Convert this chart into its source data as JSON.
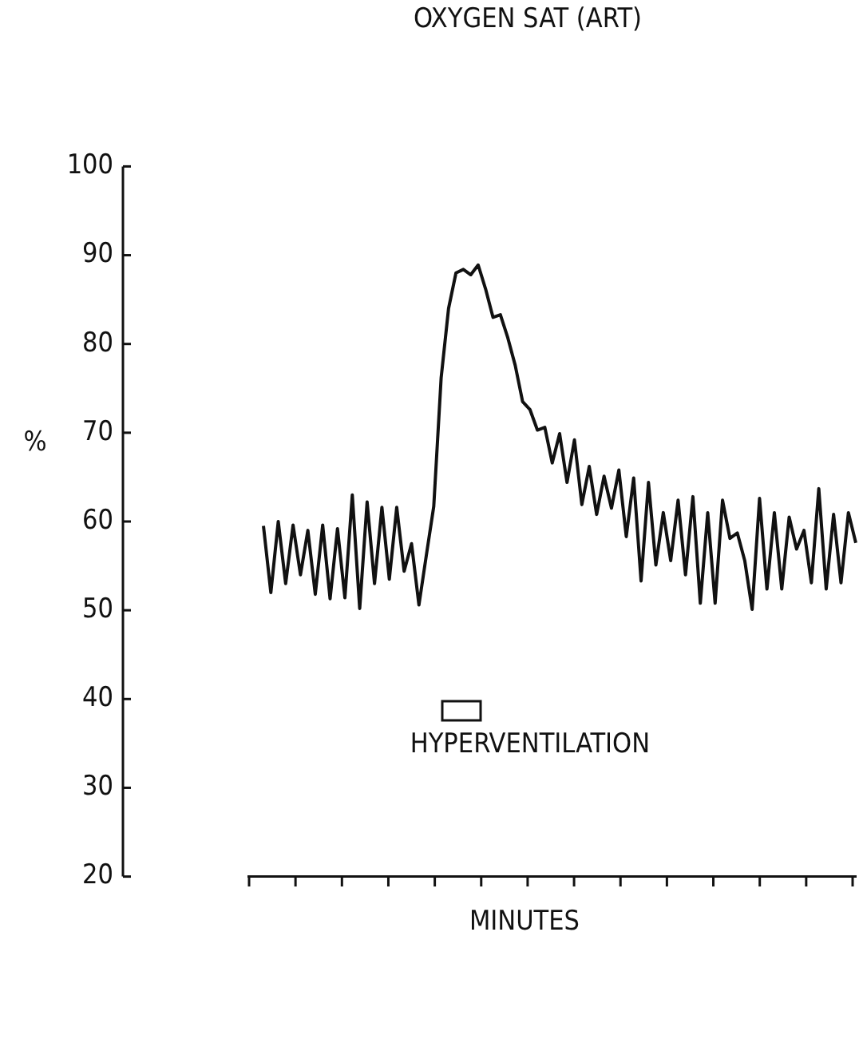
{
  "chart_data": {
    "type": "line",
    "title": "OXYGEN SAT (ART)",
    "xlabel": "MINUTES",
    "ylabel": "%",
    "categories": [
      null,
      null,
      null,
      null,
      null,
      null,
      null,
      null,
      null,
      null,
      null,
      null,
      null,
      null,
      null,
      null,
      null,
      null,
      null,
      null,
      null,
      null,
      null,
      null,
      null,
      null,
      null,
      null,
      null,
      null,
      null,
      null,
      null,
      null,
      null,
      null,
      null,
      null,
      null,
      null,
      null,
      null,
      null,
      null,
      null,
      null,
      null,
      null,
      null,
      null,
      null,
      null,
      null,
      null,
      null,
      null,
      null,
      null,
      null,
      null,
      null,
      null,
      null,
      null,
      null,
      null,
      null,
      null,
      null,
      null,
      null,
      null,
      null,
      null,
      null,
      null,
      null,
      null,
      null,
      null,
      null
    ],
    "series": [
      {
        "color": "#111111",
        "values": [
          59.5,
          52,
          60,
          53,
          59.6,
          54,
          59,
          51.8,
          59.6,
          51.3,
          59.2,
          51.4,
          63,
          50.2,
          62.2,
          53,
          61.6,
          53.5,
          61.6,
          54.4,
          57.5,
          50.6,
          56.2,
          61.7,
          76.2,
          84,
          88,
          88.4,
          87.8,
          88.9,
          86.2,
          83,
          83.3,
          80.7,
          77.6,
          73.5,
          72.6,
          70.3,
          70.6,
          66.6,
          69.9,
          64.4,
          69.2,
          61.9,
          66.2,
          60.8,
          65.1,
          61.5,
          65.8,
          58.3,
          64.9,
          53.3,
          64.4,
          55.1,
          61,
          55.6,
          62.4,
          54,
          62.8,
          50.8,
          61,
          50.8,
          62.4,
          58.1,
          58.7,
          55.6,
          50.1,
          62.6,
          52.4,
          61,
          52.4,
          60.5,
          56.9,
          59,
          53.1,
          63.7,
          52.4,
          60.8,
          53.1,
          61,
          57.6
        ]
      }
    ],
    "ylim": [
      20,
      100
    ],
    "yticks": [
      20,
      30,
      40,
      50,
      60,
      70,
      80,
      90,
      100
    ],
    "annotations": [
      "HYPERVENTILATION"
    ],
    "grid": false,
    "legend": false,
    "marker": "none",
    "line_style": "solid",
    "tick_labels": "y"
  }
}
